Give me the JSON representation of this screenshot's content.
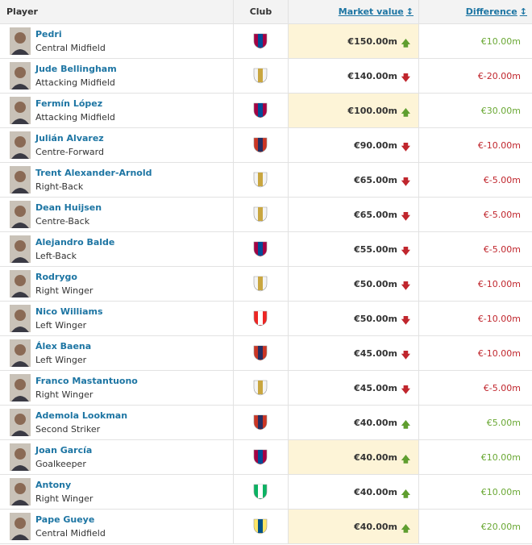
{
  "header": {
    "player": "Player",
    "club": "Club",
    "market_value": "Market value",
    "difference": "Difference"
  },
  "rows": [
    {
      "name": "Pedri",
      "position": "Central Midfield",
      "market_value": "€150.00m",
      "difference": "€10.00m",
      "highlight": true,
      "crest": [
        "#a50044",
        "#004d98"
      ]
    },
    {
      "name": "Jude Bellingham",
      "position": "Attacking Midfield",
      "market_value": "€140.00m",
      "difference": "€-20.00m",
      "highlight": false,
      "crest": [
        "#f4f4f4",
        "#c9a640"
      ]
    },
    {
      "name": "Fermín López",
      "position": "Attacking Midfield",
      "market_value": "€100.00m",
      "difference": "€30.00m",
      "highlight": true,
      "crest": [
        "#a50044",
        "#004d98"
      ]
    },
    {
      "name": "Julián Alvarez",
      "position": "Centre-Forward",
      "market_value": "€90.00m",
      "difference": "€-10.00m",
      "highlight": false,
      "crest": [
        "#cb3524",
        "#272e61"
      ]
    },
    {
      "name": "Trent Alexander-Arnold",
      "position": "Right-Back",
      "market_value": "€65.00m",
      "difference": "€-5.00m",
      "highlight": false,
      "crest": [
        "#f4f4f4",
        "#c9a640"
      ]
    },
    {
      "name": "Dean Huijsen",
      "position": "Centre-Back",
      "market_value": "€65.00m",
      "difference": "€-5.00m",
      "highlight": false,
      "crest": [
        "#f4f4f4",
        "#c9a640"
      ]
    },
    {
      "name": "Alejandro Balde",
      "position": "Left-Back",
      "market_value": "€55.00m",
      "difference": "€-5.00m",
      "highlight": false,
      "crest": [
        "#a50044",
        "#004d98"
      ]
    },
    {
      "name": "Rodrygo",
      "position": "Right Winger",
      "market_value": "€50.00m",
      "difference": "€-10.00m",
      "highlight": false,
      "crest": [
        "#f4f4f4",
        "#c9a640"
      ]
    },
    {
      "name": "Nico Williams",
      "position": "Left Winger",
      "market_value": "€50.00m",
      "difference": "€-10.00m",
      "highlight": false,
      "crest": [
        "#ee2523",
        "#ffffff"
      ]
    },
    {
      "name": "Álex Baena",
      "position": "Left Winger",
      "market_value": "€45.00m",
      "difference": "€-10.00m",
      "highlight": false,
      "crest": [
        "#cb3524",
        "#272e61"
      ]
    },
    {
      "name": "Franco Mastantuono",
      "position": "Right Winger",
      "market_value": "€45.00m",
      "difference": "€-5.00m",
      "highlight": false,
      "crest": [
        "#f4f4f4",
        "#c9a640"
      ]
    },
    {
      "name": "Ademola Lookman",
      "position": "Second Striker",
      "market_value": "€40.00m",
      "difference": "€5.00m",
      "highlight": false,
      "crest": [
        "#cb3524",
        "#272e61"
      ]
    },
    {
      "name": "Joan García",
      "position": "Goalkeeper",
      "market_value": "€40.00m",
      "difference": "€10.00m",
      "highlight": true,
      "crest": [
        "#a50044",
        "#004d98"
      ]
    },
    {
      "name": "Antony",
      "position": "Right Winger",
      "market_value": "€40.00m",
      "difference": "€10.00m",
      "highlight": false,
      "crest": [
        "#0bb363",
        "#ffffff"
      ]
    },
    {
      "name": "Pape Gueye",
      "position": "Central Midfield",
      "market_value": "€40.00m",
      "difference": "€20.00m",
      "highlight": true,
      "crest": [
        "#ffe667",
        "#005187"
      ]
    }
  ]
}
